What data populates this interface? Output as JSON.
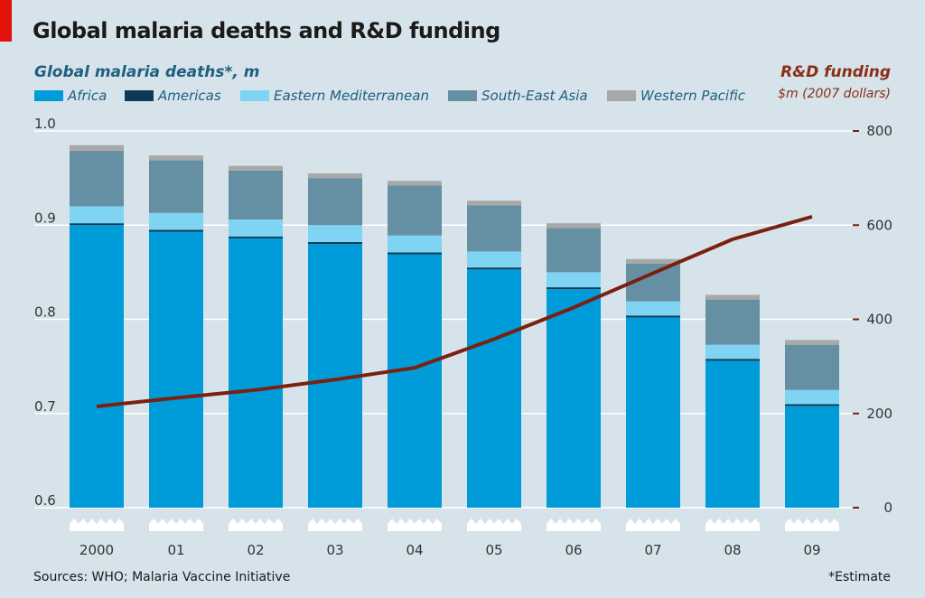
{
  "title": "Global malaria deaths and R&D funding",
  "left_axis": {
    "title": "Global malaria deaths*, m"
  },
  "right_axis": {
    "title": "R&D funding",
    "unit": "$m (2007 dollars)"
  },
  "source": "Sources: WHO; Malaria Vaccine Initiative",
  "footnote": "*Estimate",
  "colors": {
    "accent": "#e3120b",
    "africa": "#009bd9",
    "americas": "#0d3b56",
    "eastern_mediterranean": "#7fd3f3",
    "south_east_asia": "#6590a4",
    "western_pacific": "#a8a8a8",
    "funding_line": "#7a2010",
    "background": "#d6e3ea"
  },
  "legend": [
    {
      "key": "africa",
      "label": "Africa"
    },
    {
      "key": "americas",
      "label": "Americas"
    },
    {
      "key": "eastern_mediterranean",
      "label": "Eastern Mediterranean"
    },
    {
      "key": "south_east_asia",
      "label": "South-East Asia"
    },
    {
      "key": "western_pacific",
      "label": "Western Pacific"
    }
  ],
  "chart_data": {
    "type": "bar",
    "stacked": true,
    "categories": [
      "2000",
      "01",
      "02",
      "03",
      "04",
      "05",
      "06",
      "07",
      "08",
      "09"
    ],
    "ylim": [
      0.6,
      1.0
    ],
    "y_ticks": [
      "0.6",
      "0.7",
      "0.8",
      "0.9",
      "1.0"
    ],
    "y2lim": [
      0,
      800
    ],
    "y2_ticks": [
      "0",
      "200",
      "400",
      "600",
      "800"
    ],
    "series": [
      {
        "name": "Africa",
        "key": "africa",
        "values": [
          0.9,
          0.893,
          0.886,
          0.88,
          0.869,
          0.853,
          0.832,
          0.802,
          0.756,
          0.708
        ]
      },
      {
        "name": "Americas",
        "key": "americas",
        "values": [
          0.002,
          0.002,
          0.002,
          0.002,
          0.002,
          0.002,
          0.002,
          0.002,
          0.002,
          0.002
        ]
      },
      {
        "name": "Eastern Mediterranean",
        "key": "eastern_mediterranean",
        "values": [
          0.018,
          0.018,
          0.018,
          0.018,
          0.018,
          0.017,
          0.016,
          0.015,
          0.015,
          0.015
        ]
      },
      {
        "name": "South-East Asia",
        "key": "south_east_asia",
        "values": [
          0.059,
          0.056,
          0.052,
          0.05,
          0.053,
          0.049,
          0.047,
          0.04,
          0.048,
          0.048
        ]
      },
      {
        "name": "Western Pacific",
        "key": "western_pacific",
        "values": [
          0.006,
          0.005,
          0.005,
          0.005,
          0.005,
          0.005,
          0.005,
          0.005,
          0.005,
          0.005
        ]
      }
    ],
    "line_series": {
      "name": "R&D funding",
      "axis": "right",
      "values": [
        215,
        233,
        250,
        272,
        297,
        358,
        425,
        498,
        570,
        618
      ]
    },
    "grid": true
  }
}
